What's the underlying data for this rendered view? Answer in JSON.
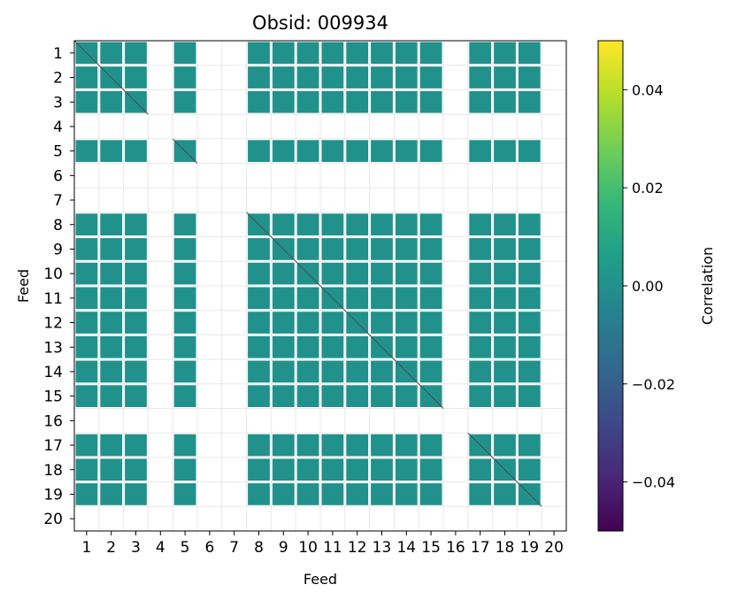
{
  "chart_data": {
    "type": "heatmap",
    "title": "Obsid: 009934",
    "xlabel": "Feed",
    "ylabel": "Feed",
    "x_ticks": [
      "1",
      "2",
      "3",
      "4",
      "5",
      "6",
      "7",
      "8",
      "9",
      "10",
      "11",
      "12",
      "13",
      "14",
      "15",
      "16",
      "17",
      "18",
      "19",
      "20"
    ],
    "y_ticks": [
      "1",
      "2",
      "3",
      "4",
      "5",
      "6",
      "7",
      "8",
      "9",
      "10",
      "11",
      "12",
      "13",
      "14",
      "15",
      "16",
      "17",
      "18",
      "19",
      "20"
    ],
    "colorbar": {
      "label": "Correlation",
      "colormap": "viridis",
      "vmin": -0.05,
      "vmax": 0.05,
      "ticks": [
        "0.04",
        "0.02",
        "0.00",
        "−0.02",
        "−0.04"
      ],
      "tick_values": [
        0.04,
        0.02,
        0.0,
        -0.02,
        -0.04
      ]
    },
    "active_feeds": [
      1,
      2,
      3,
      5,
      8,
      9,
      10,
      11,
      12,
      13,
      14,
      15,
      17,
      18,
      19
    ],
    "inactive_feeds": [
      4,
      6,
      7,
      16,
      20
    ],
    "cell_value": 0.0,
    "cell_color": "#21918c",
    "grid": true,
    "colors": {
      "viridis": [
        "#440154",
        "#482878",
        "#3e4989",
        "#31688e",
        "#26828e",
        "#1f9e89",
        "#35b779",
        "#6ece58",
        "#b5de2b",
        "#fde725"
      ],
      "grid": "#e8e8e8",
      "diagonal": "#4d4d4d"
    }
  }
}
